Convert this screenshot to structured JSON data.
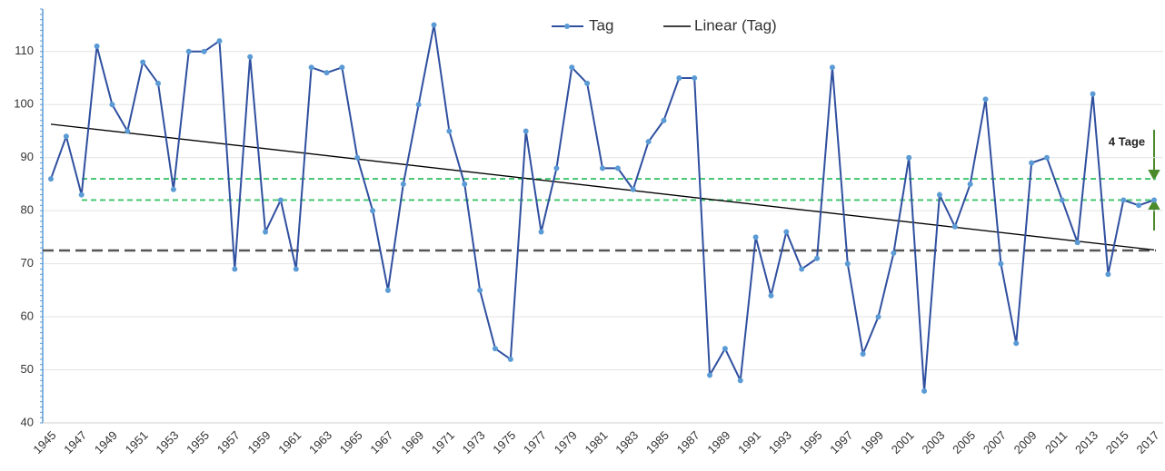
{
  "chart_data": {
    "type": "line",
    "categories": [
      "1945",
      null,
      "1947",
      null,
      "1949",
      null,
      "1951",
      null,
      "1953",
      null,
      "1955",
      null,
      "1957",
      null,
      "1959",
      null,
      "1961",
      null,
      "1963",
      null,
      "1965",
      null,
      "1967",
      null,
      "1969",
      null,
      "1971",
      null,
      "1973",
      null,
      "1975",
      null,
      "1977",
      null,
      "1979",
      null,
      "1981",
      null,
      "1983",
      null,
      "1985",
      null,
      "1987",
      null,
      "1989",
      null,
      "1991",
      null,
      "1993",
      null,
      "1995",
      null,
      "1997",
      null,
      "1999",
      null,
      "2001",
      null,
      "2003",
      null,
      "2005",
      null,
      "2007",
      null,
      "2009",
      null,
      "2011",
      null,
      "2013",
      null,
      "2015",
      null,
      "2017"
    ],
    "series": [
      {
        "name": "Tag",
        "color": "#2f4f9f",
        "marker_color": "#5b9bd5",
        "values": [
          86,
          94,
          83,
          111,
          100,
          95,
          108,
          104,
          84,
          110,
          110,
          112,
          69,
          109,
          76,
          82,
          69,
          107,
          106,
          107,
          90,
          80,
          65,
          85,
          100,
          115,
          95,
          85,
          65,
          54,
          52,
          95,
          76,
          88,
          107,
          104,
          88,
          88,
          84,
          93,
          97,
          105,
          105,
          49,
          54,
          48,
          75,
          64,
          76,
          69,
          71,
          107,
          70,
          53,
          60,
          72,
          90,
          46,
          83,
          77,
          85,
          101,
          70,
          55,
          89,
          90,
          82,
          74,
          102,
          68,
          82,
          81,
          82
        ]
      }
    ],
    "trendline": {
      "name": "Linear (Tag)",
      "color": "#000000",
      "start": 96.3,
      "end": 72.6
    },
    "reference_lines": [
      {
        "value": 86,
        "color": "#3cc46a"
      },
      {
        "value": 82,
        "color": "#3cc46a"
      },
      {
        "value": 72.5,
        "color": "#555555"
      }
    ],
    "annotation": "4 Tage",
    "ylim": [
      40,
      118
    ],
    "yticks": [
      40,
      50,
      60,
      70,
      80,
      90,
      100,
      110
    ],
    "grid": true
  }
}
